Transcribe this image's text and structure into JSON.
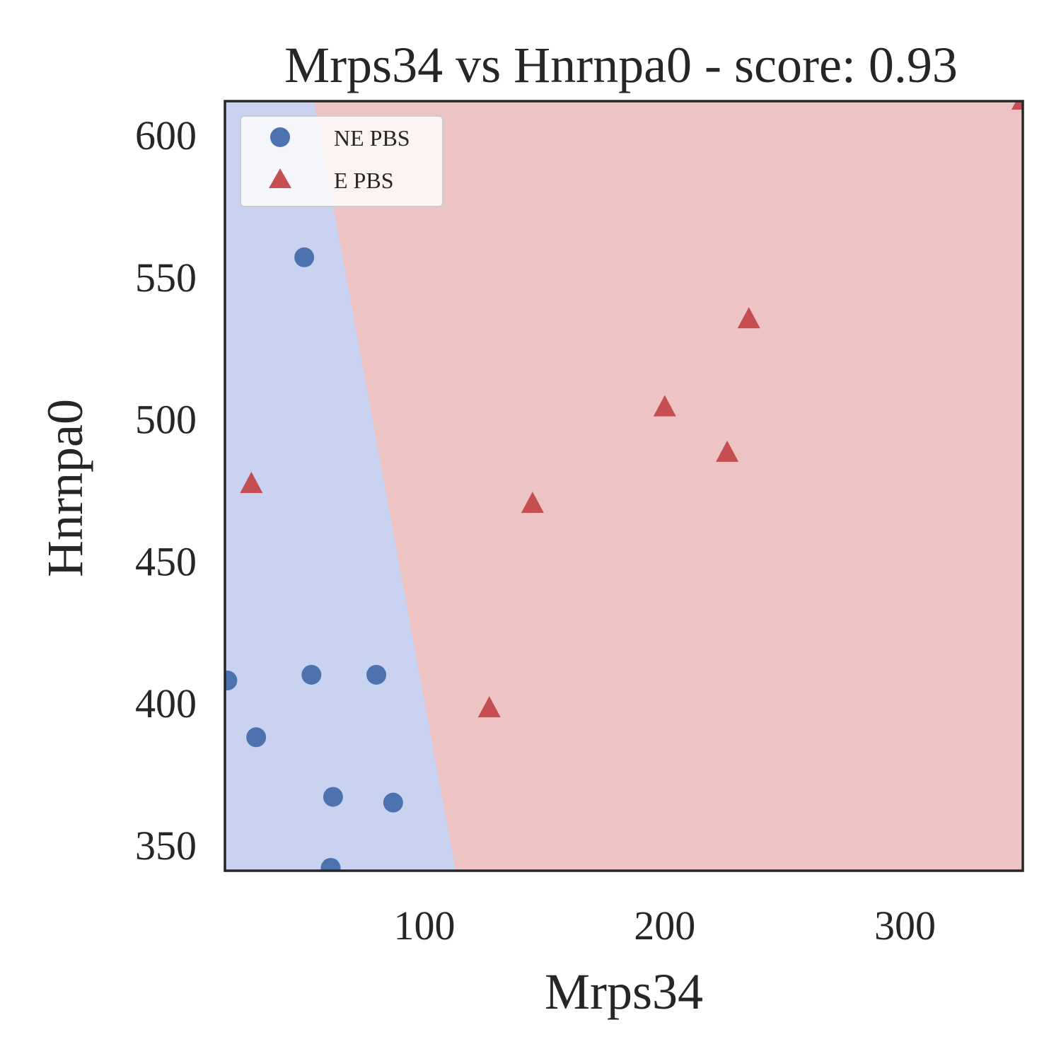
{
  "chart_data": {
    "type": "scatter",
    "title": "Mrps34 vs Hnrnpa0 - score: 0.93",
    "xlabel": "Mrps34",
    "ylabel": "Hnrnpa0",
    "xlim": [
      17,
      349
    ],
    "ylim": [
      341,
      612
    ],
    "xticks": [
      100,
      200,
      300
    ],
    "yticks": [
      350,
      400,
      450,
      500,
      550,
      600
    ],
    "grid": false,
    "legend_position": "top-left",
    "decision_boundary": {
      "description": "linear boundary separating classes",
      "points": [
        [
          54,
          612
        ],
        [
          113,
          341
        ]
      ],
      "left_region_color": "#c9d2f1",
      "right_region_color": "#edc4c3"
    },
    "series": [
      {
        "name": "NE PBS",
        "marker": "circle",
        "color": "#4c72b0",
        "x": [
          50,
          18,
          53,
          80,
          30,
          62,
          87,
          61
        ],
        "y": [
          557,
          408,
          410,
          410,
          388,
          367,
          365,
          342
        ]
      },
      {
        "name": "E PBS",
        "marker": "triangle",
        "color": "#c44e52",
        "x": [
          28,
          127,
          145,
          200,
          226,
          235,
          349
        ],
        "y": [
          477,
          398,
          470,
          504,
          488,
          535,
          612
        ]
      }
    ]
  }
}
